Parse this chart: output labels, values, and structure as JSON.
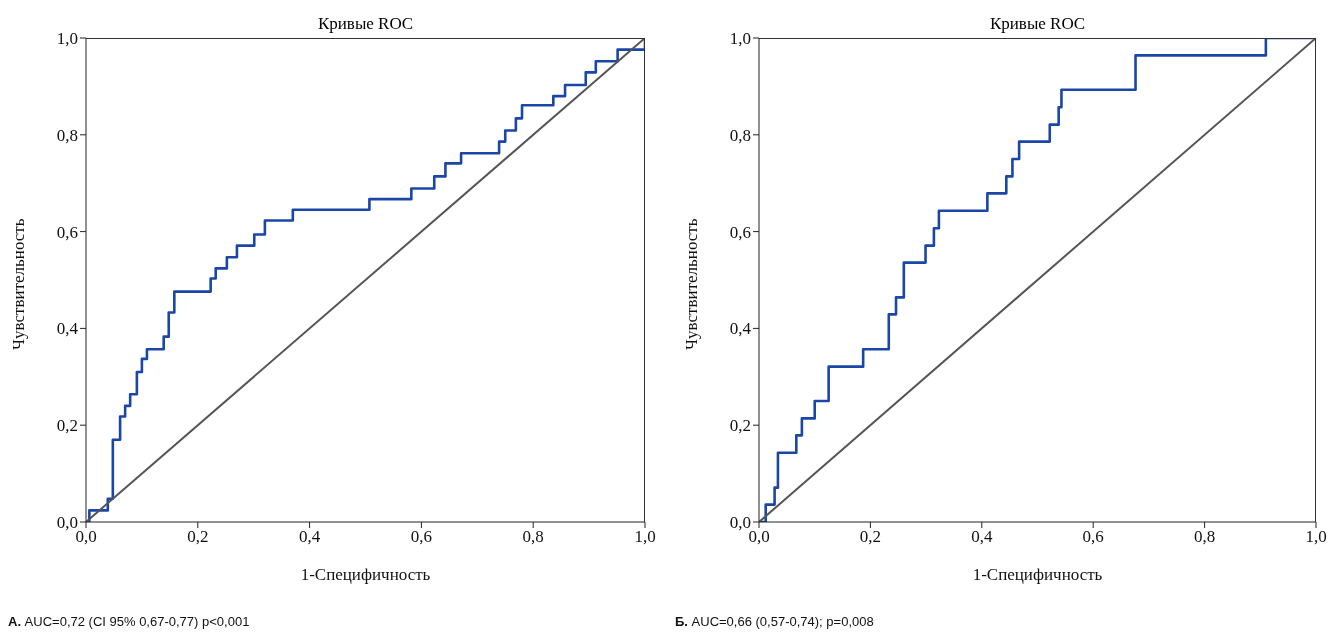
{
  "chart_data": [
    {
      "type": "step",
      "title": "Кривые ROC",
      "xlabel": "1-Специфичность",
      "ylabel": "Чувствительность",
      "xlim": [
        0,
        1
      ],
      "ylim": [
        0,
        1
      ],
      "xticks": [
        {
          "value": 0,
          "label": "0,0"
        },
        {
          "value": 0.2,
          "label": "0,2"
        },
        {
          "value": 0.4,
          "label": "0,4"
        },
        {
          "value": 0.6,
          "label": "0,6"
        },
        {
          "value": 0.8,
          "label": "0,8"
        },
        {
          "value": 1,
          "label": "1,0"
        }
      ],
      "yticks": [
        {
          "value": 0,
          "label": "0,0"
        },
        {
          "value": 0.2,
          "label": "0,2"
        },
        {
          "value": 0.4,
          "label": "0,4"
        },
        {
          "value": 0.6,
          "label": "0,6"
        },
        {
          "value": 0.8,
          "label": "0,8"
        },
        {
          "value": 1,
          "label": "1,0"
        }
      ],
      "marker": "none",
      "series": [
        {
          "color": "#1a46a8",
          "x": [
            0,
            0.006,
            0.039,
            0.048,
            0.061,
            0.07,
            0.079,
            0.091,
            0.1,
            0.109,
            0.139,
            0.148,
            0.158,
            0.223,
            0.232,
            0.252,
            0.27,
            0.301,
            0.32,
            0.37,
            0.507,
            0.582,
            0.623,
            0.643,
            0.671,
            0.739,
            0.75,
            0.769,
            0.78,
            0.836,
            0.857,
            0.894,
            0.912,
            0.951,
            1
          ],
          "values": [
            0,
            0.024,
            0.048,
            0.17,
            0.218,
            0.24,
            0.264,
            0.31,
            0.337,
            0.357,
            0.383,
            0.433,
            0.476,
            0.503,
            0.524,
            0.547,
            0.571,
            0.594,
            0.623,
            0.645,
            0.667,
            0.689,
            0.714,
            0.741,
            0.762,
            0.786,
            0.809,
            0.834,
            0.861,
            0.88,
            0.903,
            0.929,
            0.952,
            0.976,
            1
          ]
        },
        {
          "type": "line",
          "color": "#555555",
          "x": [
            0,
            1
          ],
          "values": [
            0,
            1
          ]
        }
      ],
      "annotations": [
        "А. AUC=0,72 (CI 95% 0,67-0,77) p<0,001"
      ]
    },
    {
      "type": "step",
      "title": "Кривые ROC",
      "xlabel": "1-Специфичность",
      "ylabel": "Чувствительность",
      "xlim": [
        0,
        1
      ],
      "ylim": [
        0,
        1
      ],
      "xticks": [
        {
          "value": 0,
          "label": "0,0"
        },
        {
          "value": 0.2,
          "label": "0,2"
        },
        {
          "value": 0.4,
          "label": "0,4"
        },
        {
          "value": 0.6,
          "label": "0,6"
        },
        {
          "value": 0.8,
          "label": "0,8"
        },
        {
          "value": 1,
          "label": "1,0"
        }
      ],
      "yticks": [
        {
          "value": 0,
          "label": "0,0"
        },
        {
          "value": 0.2,
          "label": "0,2"
        },
        {
          "value": 0.4,
          "label": "0,4"
        },
        {
          "value": 0.6,
          "label": "0,6"
        },
        {
          "value": 0.8,
          "label": "0,8"
        },
        {
          "value": 1,
          "label": "1,0"
        }
      ],
      "marker": "none",
      "series": [
        {
          "color": "#1a46a8",
          "x": [
            0,
            0.012,
            0.028,
            0.034,
            0.067,
            0.077,
            0.1,
            0.125,
            0.187,
            0.233,
            0.246,
            0.26,
            0.299,
            0.314,
            0.323,
            0.41,
            0.444,
            0.455,
            0.467,
            0.522,
            0.538,
            0.543,
            0.676,
            0.91,
            1
          ],
          "values": [
            0,
            0.036,
            0.071,
            0.143,
            0.179,
            0.214,
            0.25,
            0.321,
            0.357,
            0.429,
            0.464,
            0.536,
            0.571,
            0.607,
            0.643,
            0.679,
            0.714,
            0.75,
            0.786,
            0.821,
            0.857,
            0.893,
            0.964,
            1,
            1
          ]
        },
        {
          "type": "line",
          "color": "#555555",
          "x": [
            0,
            1
          ],
          "values": [
            0,
            1
          ]
        }
      ],
      "annotations": [
        "Б. AUC=0,66 (0,57-0,74); p=0,008"
      ]
    }
  ]
}
